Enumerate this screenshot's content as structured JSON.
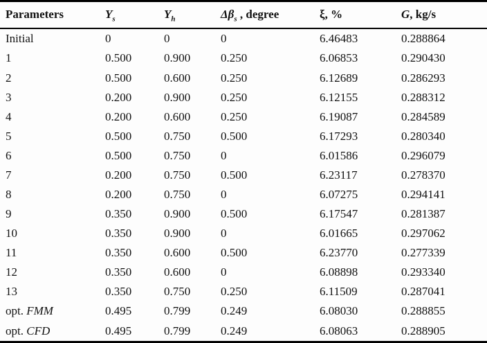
{
  "table": {
    "columns": [
      {
        "main": "Parameters",
        "sub": "",
        "suffix": ""
      },
      {
        "main": "Y",
        "sub": "s",
        "suffix": ""
      },
      {
        "main": "Y",
        "sub": "h",
        "suffix": ""
      },
      {
        "main": "Δβ",
        "sub": "s",
        "suffix": " , degree"
      },
      {
        "main": "ξ",
        "sub": "",
        "suffix": ", %"
      },
      {
        "main": "G",
        "sub": "",
        "suffix": ", kg/s"
      }
    ],
    "rows": [
      {
        "param": "Initial",
        "param_em": "",
        "ys": "0",
        "yh": "0",
        "db": "0",
        "xi": "6.46483",
        "g": "0.288864"
      },
      {
        "param": "1",
        "param_em": "",
        "ys": "0.500",
        "yh": "0.900",
        "db": "0.250",
        "xi": "6.06853",
        "g": "0.290430"
      },
      {
        "param": "2",
        "param_em": "",
        "ys": "0.500",
        "yh": "0.600",
        "db": "0.250",
        "xi": "6.12689",
        "g": "0.286293"
      },
      {
        "param": "3",
        "param_em": "",
        "ys": "0.200",
        "yh": "0.900",
        "db": "0.250",
        "xi": "6.12155",
        "g": "0.288312"
      },
      {
        "param": "4",
        "param_em": "",
        "ys": "0.200",
        "yh": "0.600",
        "db": "0.250",
        "xi": "6.19087",
        "g": "0.284589"
      },
      {
        "param": "5",
        "param_em": "",
        "ys": "0.500",
        "yh": "0.750",
        "db": "0.500",
        "xi": "6.17293",
        "g": "0.280340"
      },
      {
        "param": "6",
        "param_em": "",
        "ys": "0.500",
        "yh": "0.750",
        "db": "0",
        "xi": "6.01586",
        "g": "0.296079"
      },
      {
        "param": "7",
        "param_em": "",
        "ys": "0.200",
        "yh": "0.750",
        "db": "0.500",
        "xi": "6.23117",
        "g": "0.278370"
      },
      {
        "param": "8",
        "param_em": "",
        "ys": "0.200",
        "yh": "0.750",
        "db": "0",
        "xi": "6.07275",
        "g": "0.294141"
      },
      {
        "param": "9",
        "param_em": "",
        "ys": "0.350",
        "yh": "0.900",
        "db": "0.500",
        "xi": "6.17547",
        "g": "0.281387"
      },
      {
        "param": "10",
        "param_em": "",
        "ys": "0.350",
        "yh": "0.900",
        "db": "0",
        "xi": "6.01665",
        "g": "0.297062"
      },
      {
        "param": "11",
        "param_em": "",
        "ys": "0.350",
        "yh": "0.600",
        "db": "0.500",
        "xi": "6.23770",
        "g": "0.277339"
      },
      {
        "param": "12",
        "param_em": "",
        "ys": "0.350",
        "yh": "0.600",
        "db": "0",
        "xi": "6.08898",
        "g": "0.293340"
      },
      {
        "param": "13",
        "param_em": "",
        "ys": "0.350",
        "yh": "0.750",
        "db": "0.250",
        "xi": "6.11509",
        "g": "0.287041"
      },
      {
        "param": "opt. ",
        "param_em": "FMM",
        "ys": "0.495",
        "yh": "0.799",
        "db": "0.249",
        "xi": "6.08030",
        "g": "0.288855"
      },
      {
        "param": "opt. ",
        "param_em": "CFD",
        "ys": "0.495",
        "yh": "0.799",
        "db": "0.249",
        "xi": "6.08063",
        "g": "0.288905"
      }
    ]
  }
}
